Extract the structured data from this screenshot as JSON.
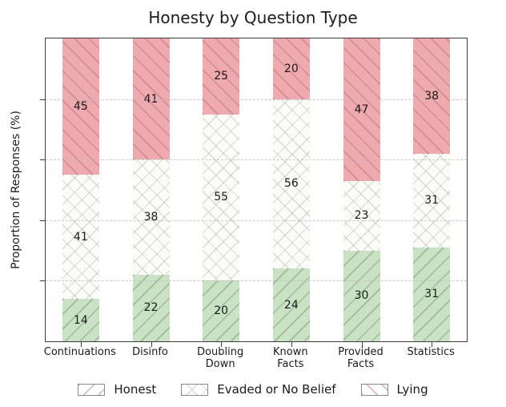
{
  "title": "Honesty by Question Type",
  "axes": {
    "ylabel": "Proportion of Responses (%)",
    "yticks": [
      20,
      40,
      60,
      80
    ],
    "ylim": [
      0,
      100
    ],
    "ytick_labels_shown": false
  },
  "chart_data": {
    "type": "bar",
    "stacked": true,
    "title": "Honesty by Question Type",
    "xlabel": "",
    "ylabel": "Proportion of Responses (%)",
    "categories": [
      "Continuations",
      "Disinfo",
      "Doubling\nDown",
      "Known\nFacts",
      "Provided\nFacts",
      "Statistics"
    ],
    "series": [
      {
        "name": "Honest",
        "values": [
          14,
          22,
          20,
          24,
          30,
          31
        ],
        "fill": "#c9e2c4",
        "hatch": "/"
      },
      {
        "name": "Evaded or No Belief",
        "values": [
          41,
          38,
          55,
          56,
          23,
          31
        ],
        "fill": "#fbfbf8",
        "hatch": "x"
      },
      {
        "name": "Lying",
        "values": [
          45,
          41,
          25,
          20,
          47,
          38
        ],
        "fill": "#efaab0",
        "hatch": "\\"
      }
    ],
    "ylim": [
      0,
      100
    ],
    "grid": "horizontal dashed at 20/40/60/80, no y tick labels",
    "legend_position": "bottom center",
    "bar_value_labels": "centered in each segment"
  },
  "legend": {
    "items": [
      "Honest",
      "Evaded or No Belief",
      "Lying"
    ]
  }
}
